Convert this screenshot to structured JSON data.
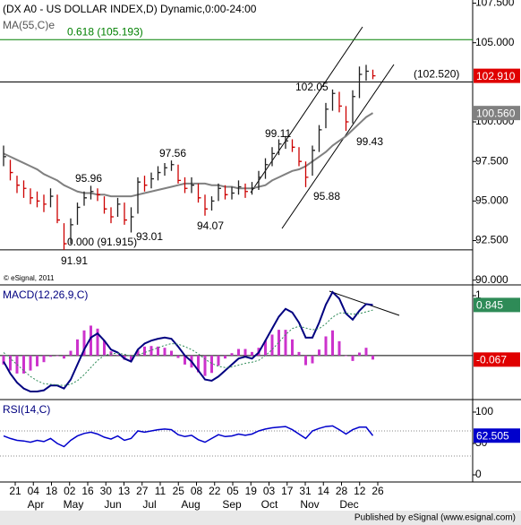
{
  "title": "(DX A0 - US DOLLAR INDEX,D) Dynamic,0:00-24:00",
  "copyright": "© eSignal, 2011",
  "footer": "Published by eSignal (www.esignal.com)",
  "x_axis": {
    "day_labels": [
      "21",
      "04",
      "18",
      "02",
      "16",
      "30",
      "13",
      "27",
      "11",
      "25",
      "08",
      "22",
      "05",
      "19",
      "03",
      "17",
      "31",
      "14",
      "28",
      "12",
      "26"
    ],
    "month_labels": [
      "Apr",
      "May",
      "Jun",
      "Jul",
      "Aug",
      "Sep",
      "Oct",
      "Nov",
      "Dec"
    ]
  },
  "chart_data": [
    {
      "type": "hlc",
      "up_color": "#202020",
      "down_color": "#cc0000",
      "ylim": [
        89.7,
        107.7
      ],
      "yticks": [
        {
          "value": 107.5,
          "label": "107.500"
        },
        {
          "value": 105,
          "label": "105.000"
        },
        {
          "value": 100,
          "label": "100.000"
        },
        {
          "value": 97.5,
          "label": "97.500"
        },
        {
          "value": 95,
          "label": "95.000"
        },
        {
          "value": 92.5,
          "label": "92.500"
        },
        {
          "value": 90,
          "label": "90.000"
        }
      ],
      "high": [
        98.5,
        97.6,
        96.6,
        96.3,
        95.8,
        95.6,
        95.4,
        95.8,
        95.4,
        93.6,
        93.9,
        94.9,
        95.6,
        95.96,
        95.8,
        95.3,
        94.6,
        95.2,
        94.9,
        94.6,
        96.5,
        96.6,
        96.8,
        97.2,
        97.4,
        97.56,
        97.3,
        96.5,
        96.5,
        96.1,
        95.4,
        95.3,
        96.1,
        96.0,
        95.9,
        96.3,
        96.1,
        96.2,
        96.9,
        97.7,
        98.4,
        98.9,
        99.11,
        98.9,
        98.4,
        97.5,
        98.5,
        99.8,
        101.2,
        102.05,
        101.9,
        101.0,
        102.0,
        103.5,
        103.6,
        103.3
      ],
      "low": [
        97.2,
        96.3,
        95.5,
        95.2,
        94.8,
        94.6,
        94.3,
        94.6,
        93.6,
        91.91,
        92.3,
        93.5,
        94.7,
        95.1,
        95.0,
        94.2,
        93.6,
        94.0,
        93.5,
        93.01,
        94.2,
        95.6,
        95.8,
        96.3,
        96.6,
        96.9,
        96.1,
        95.5,
        95.5,
        94.9,
        94.07,
        94.4,
        95.0,
        95.1,
        95.1,
        95.4,
        95.2,
        95.4,
        95.7,
        96.4,
        97.2,
        97.9,
        98.3,
        98.1,
        97.2,
        95.88,
        96.6,
        98.1,
        99.6,
        100.7,
        100.6,
        99.43,
        99.9,
        101.5,
        102.6,
        102.7
      ],
      "close": [
        97.8,
        96.8,
        96.0,
        95.8,
        95.2,
        95.0,
        94.8,
        95.3,
        93.8,
        92.3,
        93.5,
        94.6,
        95.2,
        95.6,
        95.4,
        94.5,
        94.0,
        94.8,
        93.8,
        94.0,
        96.2,
        96.0,
        96.4,
        96.8,
        97.1,
        97.3,
        96.3,
        95.8,
        96.0,
        95.2,
        94.5,
        95.0,
        95.8,
        95.4,
        95.5,
        95.9,
        95.6,
        95.8,
        96.5,
        97.3,
        98.0,
        98.6,
        98.8,
        98.4,
        97.5,
        96.5,
        98.2,
        99.5,
        100.8,
        101.8,
        101.0,
        100.0,
        101.6,
        103.0,
        103.2,
        102.91
      ],
      "series": [
        {
          "name": "MA(55,C)e",
          "color": "#808080",
          "values": [
            98.0,
            97.8,
            97.6,
            97.4,
            97.2,
            97.0,
            96.7,
            96.5,
            96.3,
            96.0,
            95.8,
            95.6,
            95.5,
            95.5,
            95.4,
            95.4,
            95.3,
            95.3,
            95.3,
            95.3,
            95.4,
            95.5,
            95.6,
            95.7,
            95.8,
            95.9,
            96.0,
            96.1,
            96.1,
            96.1,
            96.1,
            96.0,
            96.0,
            95.9,
            95.9,
            95.8,
            95.8,
            95.8,
            95.9,
            96.0,
            96.3,
            96.5,
            96.7,
            96.9,
            97.0,
            97.2,
            97.5,
            97.8,
            98.1,
            98.5,
            98.8,
            99.1,
            99.5,
            99.9,
            100.3,
            100.56
          ]
        }
      ],
      "levels": [
        {
          "value": 105.193,
          "label": "0.618 (105.193)",
          "color": "#008000"
        },
        {
          "value": 102.52,
          "label": "(102.520)",
          "color": "#000000"
        },
        {
          "value": 91.915,
          "label": "0.000 (91.915)",
          "color": "#000000"
        }
      ],
      "swing_labels": [
        91.91,
        95.96,
        93.01,
        97.56,
        94.07,
        99.11,
        95.88,
        102.05,
        99.43
      ],
      "last_labels": [
        {
          "value": 102.91,
          "label": "102.910",
          "color": "#e00000"
        },
        {
          "value": 100.56,
          "label": "100.560",
          "color": "#808080"
        }
      ]
    },
    {
      "type": "macd",
      "title": "MACD(12,26,9,C)",
      "title_color": "#000080",
      "ylim": [
        -0.72,
        1.15
      ],
      "yticks": [
        1
      ],
      "series": [
        {
          "color": "#000080",
          "values": [
            -0.1,
            -0.3,
            -0.45,
            -0.55,
            -0.6,
            -0.6,
            -0.58,
            -0.5,
            -0.5,
            -0.55,
            -0.4,
            -0.15,
            0.1,
            0.3,
            0.37,
            0.25,
            0.1,
            0.05,
            -0.05,
            -0.1,
            0.1,
            0.2,
            0.25,
            0.28,
            0.3,
            0.28,
            0.15,
            0.0,
            -0.1,
            -0.25,
            -0.4,
            -0.42,
            -0.35,
            -0.25,
            -0.15,
            -0.05,
            -0.02,
            -0.05,
            0.05,
            0.25,
            0.45,
            0.65,
            0.78,
            0.72,
            0.55,
            0.3,
            0.3,
            0.55,
            0.85,
            1.06,
            0.95,
            0.7,
            0.6,
            0.75,
            0.86,
            0.845
          ]
        },
        {
          "color": "#2e8b57",
          "dotted": true,
          "values": [
            0.05,
            -0.05,
            -0.15,
            -0.25,
            -0.35,
            -0.42,
            -0.47,
            -0.48,
            -0.49,
            -0.5,
            -0.48,
            -0.42,
            -0.32,
            -0.2,
            -0.08,
            0.0,
            0.03,
            0.04,
            0.02,
            -0.01,
            0.01,
            0.05,
            0.09,
            0.13,
            0.17,
            0.2,
            0.19,
            0.15,
            0.1,
            0.03,
            -0.06,
            -0.13,
            -0.18,
            -0.2,
            -0.19,
            -0.16,
            -0.13,
            -0.11,
            -0.08,
            0.0,
            0.1,
            0.22,
            0.35,
            0.45,
            0.49,
            0.46,
            0.43,
            0.45,
            0.53,
            0.64,
            0.71,
            0.71,
            0.69,
            0.7,
            0.73,
            0.76
          ]
        }
      ],
      "histogram": {
        "color": "#cc33cc",
        "values": [
          -0.15,
          -0.25,
          -0.3,
          -0.3,
          -0.25,
          -0.18,
          -0.11,
          -0.02,
          -0.01,
          -0.05,
          0.08,
          0.27,
          0.42,
          0.5,
          0.45,
          0.25,
          0.07,
          0.01,
          -0.07,
          -0.09,
          0.09,
          0.15,
          0.16,
          0.15,
          0.13,
          0.08,
          -0.04,
          -0.15,
          -0.2,
          -0.28,
          -0.34,
          -0.29,
          -0.17,
          -0.05,
          0.04,
          0.11,
          0.11,
          0.06,
          0.13,
          0.25,
          0.35,
          0.43,
          0.43,
          0.27,
          0.06,
          -0.16,
          -0.13,
          0.1,
          0.32,
          0.42,
          0.24,
          -0.01,
          -0.09,
          0.05,
          0.13,
          -0.067
        ]
      },
      "last_labels": [
        {
          "value": 0.845,
          "label": "0.845",
          "color": "#2e8b57"
        },
        {
          "value": -0.067,
          "label": "-0.067",
          "color": "#e00000"
        }
      ]
    },
    {
      "type": "line",
      "title": "RSI(14,C)",
      "title_color": "#000080",
      "ylim": [
        -11.4,
        117.1
      ],
      "yticks": [
        100,
        50,
        0
      ],
      "levels": [
        70,
        30
      ],
      "series": [
        {
          "color": "#0000cc",
          "values": [
            62,
            58,
            55,
            54,
            52,
            55,
            53,
            58,
            50,
            45,
            55,
            62,
            66,
            68,
            65,
            60,
            57,
            62,
            55,
            58,
            70,
            68,
            70,
            72,
            73,
            72,
            64,
            61,
            63,
            56,
            52,
            58,
            64,
            61,
            62,
            65,
            63,
            65,
            70,
            73,
            75,
            76,
            77,
            72,
            65,
            58,
            70,
            74,
            77,
            78,
            72,
            65,
            72,
            76,
            76,
            62.505
          ]
        }
      ],
      "last_labels": [
        {
          "value": 62.505,
          "label": "62.505",
          "color": "#0000cc"
        }
      ]
    }
  ]
}
